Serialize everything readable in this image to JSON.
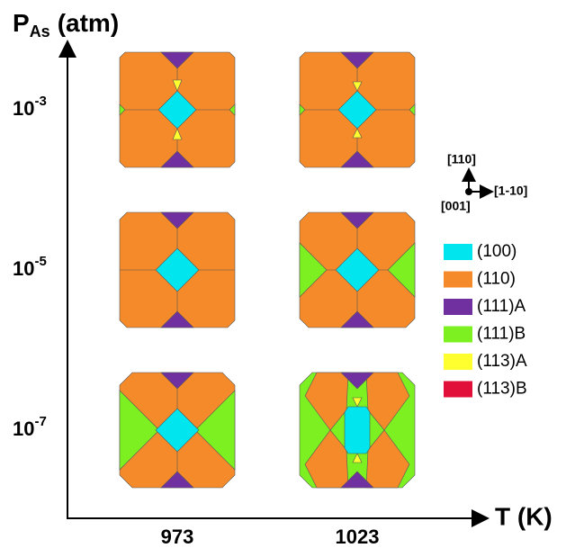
{
  "axes": {
    "y_label": {
      "base": "P",
      "sub": "As",
      "rest": "(atm)"
    },
    "x_label": "T (K)",
    "columns": [
      "973",
      "1023"
    ],
    "rows": [
      {
        "base": "10",
        "exp": "-3"
      },
      {
        "base": "10",
        "exp": "-5"
      },
      {
        "base": "10",
        "exp": "-7"
      }
    ]
  },
  "orientation": {
    "up": "[110]",
    "right": "[1-10]",
    "center": "[001]"
  },
  "legend": [
    {
      "label": "(100)",
      "color": "#00e5ee"
    },
    {
      "label": "(110)",
      "color": "#f58a2a"
    },
    {
      "label": "(111)A",
      "color": "#7030a0"
    },
    {
      "label": "(111)B",
      "color": "#7cf020"
    },
    {
      "label": "(113)A",
      "color": "#ffff30"
    },
    {
      "label": "(113)B",
      "color": "#e0103a"
    }
  ]
}
